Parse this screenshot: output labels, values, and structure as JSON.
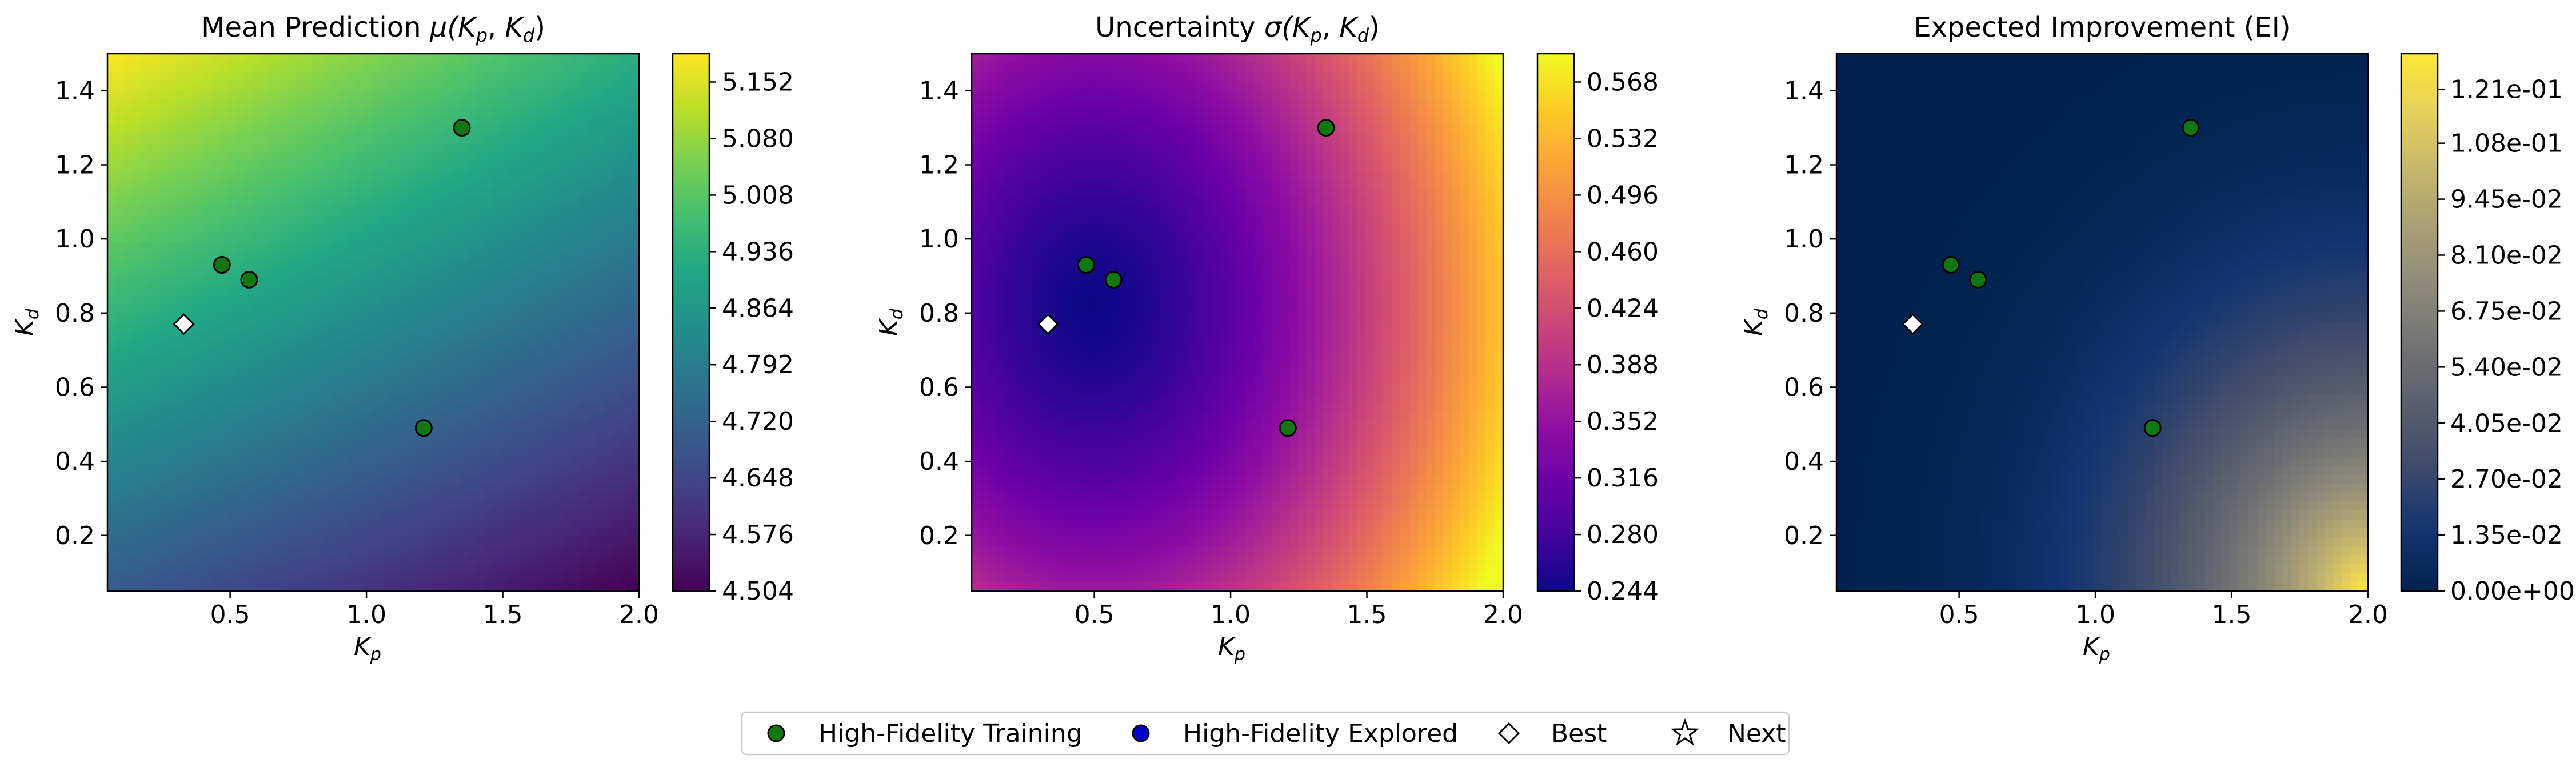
{
  "chart_data": [
    {
      "type": "heatmap",
      "title": "Mean Prediction μ(K_p, K_d)",
      "title_parts": {
        "prefix": "Mean Prediction ",
        "symbol": "μ"
      },
      "xlabel": "K_p",
      "ylabel": "K_d",
      "xlim": [
        0.05,
        2.0
      ],
      "ylim": [
        0.05,
        1.5
      ],
      "xticks": [
        "0.5",
        "1.0",
        "1.5",
        "2.0"
      ],
      "yticks": [
        "0.2",
        "0.4",
        "0.6",
        "0.8",
        "1.0",
        "1.2",
        "1.4"
      ],
      "colormap": "viridis",
      "colorbar_range": [
        4.504,
        5.188
      ],
      "colorbar_ticks": [
        "4.504",
        "4.576",
        "4.648",
        "4.720",
        "4.792",
        "4.864",
        "4.936",
        "5.008",
        "5.080",
        "5.152"
      ],
      "corners": {
        "top_left": 5.188,
        "top_right": 4.93,
        "bottom_left": 4.7,
        "bottom_right": 4.504
      }
    },
    {
      "type": "heatmap",
      "title": "Uncertainty σ(K_p, K_d)",
      "title_parts": {
        "prefix": "Uncertainty ",
        "symbol": "σ"
      },
      "xlabel": "K_p",
      "ylabel": "K_d",
      "xlim": [
        0.05,
        2.0
      ],
      "ylim": [
        0.05,
        1.5
      ],
      "xticks": [
        "0.5",
        "1.0",
        "1.5",
        "2.0"
      ],
      "yticks": [
        "0.2",
        "0.4",
        "0.6",
        "0.8",
        "1.0",
        "1.2",
        "1.4"
      ],
      "colormap": "plasma",
      "colorbar_range": [
        0.244,
        0.586
      ],
      "colorbar_ticks": [
        "0.244",
        "0.280",
        "0.316",
        "0.352",
        "0.388",
        "0.424",
        "0.460",
        "0.496",
        "0.532",
        "0.568"
      ],
      "minimum_location": [
        0.5,
        0.82
      ]
    },
    {
      "type": "heatmap",
      "title": "Expected Improvement (EI)",
      "xlabel": "K_p",
      "ylabel": "K_d",
      "xlim": [
        0.05,
        2.0
      ],
      "ylim": [
        0.05,
        1.5
      ],
      "xticks": [
        "0.5",
        "1.0",
        "1.5",
        "2.0"
      ],
      "yticks": [
        "0.2",
        "0.4",
        "0.6",
        "0.8",
        "1.0",
        "1.2",
        "1.4"
      ],
      "colormap": "cividis",
      "colorbar_range": [
        0.0,
        0.1296
      ],
      "colorbar_ticks": [
        "0.00e+00",
        "1.35e-02",
        "2.70e-02",
        "4.05e-02",
        "5.40e-02",
        "6.75e-02",
        "8.10e-02",
        "9.45e-02",
        "1.08e-01",
        "1.21e-01"
      ],
      "maximum_location": [
        2.0,
        0.05
      ]
    }
  ],
  "points": {
    "training": [
      {
        "kp": 0.47,
        "kd": 0.93
      },
      {
        "kp": 0.57,
        "kd": 0.89
      },
      {
        "kp": 1.35,
        "kd": 1.3
      },
      {
        "kp": 1.21,
        "kd": 0.49
      }
    ],
    "best": {
      "kp": 0.33,
      "kd": 0.77
    }
  },
  "legend": {
    "placement": "bottom-center",
    "items": [
      {
        "label": "High-Fidelity Training",
        "marker": "circle",
        "color": "#117711"
      },
      {
        "label": "High-Fidelity Explored",
        "marker": "circle",
        "color": "#0000cc"
      },
      {
        "label": "Best",
        "marker": "diamond",
        "color": "#ffffff"
      },
      {
        "label": "Next",
        "marker": "star",
        "color": "#ffffff"
      }
    ]
  }
}
